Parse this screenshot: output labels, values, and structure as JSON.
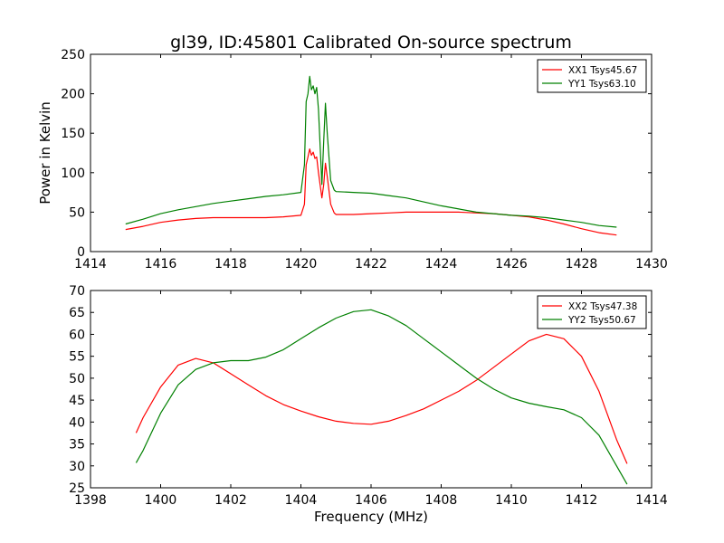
{
  "colors": {
    "xx": "#ff0000",
    "yy": "#008000",
    "frame": "#000000",
    "background": "#ffffff"
  },
  "chart_data": [
    {
      "type": "line",
      "title": "gl39, ID:45801 Calibrated On-source spectrum",
      "xlabel": "",
      "ylabel": "Power in Kelvin",
      "xlim": [
        1414,
        1430
      ],
      "ylim": [
        0,
        250
      ],
      "xticks": [
        1414,
        1416,
        1418,
        1420,
        1422,
        1424,
        1426,
        1428,
        1430
      ],
      "yticks": [
        0,
        50,
        100,
        150,
        200,
        250
      ],
      "grid": false,
      "legend": "top-right",
      "series": [
        {
          "name": "XX1 Tsys45.67",
          "color": "#ff0000",
          "points": [
            [
              1415.0,
              28
            ],
            [
              1415.5,
              32
            ],
            [
              1416.0,
              37
            ],
            [
              1416.5,
              40
            ],
            [
              1417.0,
              42
            ],
            [
              1417.5,
              43
            ],
            [
              1418.0,
              43
            ],
            [
              1418.5,
              43
            ],
            [
              1419.0,
              43
            ],
            [
              1419.5,
              44
            ],
            [
              1420.0,
              46
            ],
            [
              1420.1,
              60
            ],
            [
              1420.15,
              110
            ],
            [
              1420.2,
              120
            ],
            [
              1420.25,
              130
            ],
            [
              1420.3,
              122
            ],
            [
              1420.35,
              126
            ],
            [
              1420.4,
              118
            ],
            [
              1420.45,
              120
            ],
            [
              1420.5,
              100
            ],
            [
              1420.6,
              68
            ],
            [
              1420.65,
              85
            ],
            [
              1420.7,
              112
            ],
            [
              1420.75,
              95
            ],
            [
              1420.85,
              60
            ],
            [
              1420.95,
              49
            ],
            [
              1421.0,
              47
            ],
            [
              1421.5,
              47
            ],
            [
              1422.0,
              48
            ],
            [
              1422.5,
              49
            ],
            [
              1423.0,
              50
            ],
            [
              1423.5,
              50
            ],
            [
              1424.0,
              50
            ],
            [
              1424.5,
              50
            ],
            [
              1425.0,
              49
            ],
            [
              1425.5,
              48
            ],
            [
              1426.0,
              46
            ],
            [
              1426.5,
              44
            ],
            [
              1427.0,
              40
            ],
            [
              1427.5,
              35
            ],
            [
              1428.0,
              29
            ],
            [
              1428.5,
              24
            ],
            [
              1429.0,
              21
            ]
          ]
        },
        {
          "name": "YY1 Tsys63.10",
          "color": "#008000",
          "points": [
            [
              1415.0,
              35
            ],
            [
              1415.5,
              41
            ],
            [
              1416.0,
              48
            ],
            [
              1416.5,
              53
            ],
            [
              1417.0,
              57
            ],
            [
              1417.5,
              61
            ],
            [
              1418.0,
              64
            ],
            [
              1418.5,
              67
            ],
            [
              1419.0,
              70
            ],
            [
              1419.5,
              72
            ],
            [
              1420.0,
              75
            ],
            [
              1420.1,
              110
            ],
            [
              1420.15,
              190
            ],
            [
              1420.2,
              200
            ],
            [
              1420.25,
              222
            ],
            [
              1420.3,
              205
            ],
            [
              1420.35,
              210
            ],
            [
              1420.4,
              200
            ],
            [
              1420.45,
              208
            ],
            [
              1420.5,
              180
            ],
            [
              1420.6,
              85
            ],
            [
              1420.65,
              140
            ],
            [
              1420.7,
              188
            ],
            [
              1420.75,
              150
            ],
            [
              1420.85,
              90
            ],
            [
              1420.95,
              78
            ],
            [
              1421.0,
              76
            ],
            [
              1421.5,
              75
            ],
            [
              1422.0,
              74
            ],
            [
              1422.5,
              71
            ],
            [
              1423.0,
              68
            ],
            [
              1423.5,
              63
            ],
            [
              1424.0,
              58
            ],
            [
              1424.5,
              54
            ],
            [
              1425.0,
              50
            ],
            [
              1425.5,
              48
            ],
            [
              1426.0,
              46
            ],
            [
              1426.5,
              45
            ],
            [
              1427.0,
              43
            ],
            [
              1427.5,
              40
            ],
            [
              1428.0,
              37
            ],
            [
              1428.5,
              33
            ],
            [
              1429.0,
              31
            ]
          ]
        }
      ]
    },
    {
      "type": "line",
      "title": "",
      "xlabel": "Frequency (MHz)",
      "ylabel": "",
      "xlim": [
        1398,
        1414
      ],
      "ylim": [
        25,
        70
      ],
      "xticks": [
        1398,
        1400,
        1402,
        1404,
        1406,
        1408,
        1410,
        1412,
        1414
      ],
      "yticks": [
        25,
        30,
        35,
        40,
        45,
        50,
        55,
        60,
        65,
        70
      ],
      "grid": false,
      "legend": "top-right",
      "series": [
        {
          "name": "XX2 Tsys47.38",
          "color": "#ff0000",
          "points": [
            [
              1399.3,
              37.5
            ],
            [
              1399.5,
              41
            ],
            [
              1400.0,
              48
            ],
            [
              1400.5,
              53
            ],
            [
              1401.0,
              54.5
            ],
            [
              1401.5,
              53.5
            ],
            [
              1402.0,
              51
            ],
            [
              1402.5,
              48.5
            ],
            [
              1403.0,
              46
            ],
            [
              1403.5,
              44
            ],
            [
              1404.0,
              42.5
            ],
            [
              1404.5,
              41.2
            ],
            [
              1405.0,
              40.2
            ],
            [
              1405.5,
              39.7
            ],
            [
              1406.0,
              39.5
            ],
            [
              1406.5,
              40.2
            ],
            [
              1407.0,
              41.5
            ],
            [
              1407.5,
              43
            ],
            [
              1408.0,
              45
            ],
            [
              1408.5,
              47
            ],
            [
              1409.0,
              49.5
            ],
            [
              1409.5,
              52.5
            ],
            [
              1410.0,
              55.5
            ],
            [
              1410.5,
              58.5
            ],
            [
              1411.0,
              60
            ],
            [
              1411.5,
              59
            ],
            [
              1412.0,
              55
            ],
            [
              1412.5,
              47
            ],
            [
              1413.0,
              36
            ],
            [
              1413.3,
              30.5
            ]
          ]
        },
        {
          "name": "YY2 Tsys50.67",
          "color": "#008000",
          "points": [
            [
              1399.3,
              30.7
            ],
            [
              1399.5,
              33.5
            ],
            [
              1400.0,
              42
            ],
            [
              1400.5,
              48.5
            ],
            [
              1401.0,
              52
            ],
            [
              1401.5,
              53.5
            ],
            [
              1402.0,
              54
            ],
            [
              1402.5,
              54
            ],
            [
              1403.0,
              54.8
            ],
            [
              1403.5,
              56.5
            ],
            [
              1404.0,
              59
            ],
            [
              1404.5,
              61.5
            ],
            [
              1405.0,
              63.7
            ],
            [
              1405.5,
              65.2
            ],
            [
              1406.0,
              65.6
            ],
            [
              1406.5,
              64.2
            ],
            [
              1407.0,
              62
            ],
            [
              1407.5,
              59
            ],
            [
              1408.0,
              56
            ],
            [
              1408.5,
              53
            ],
            [
              1409.0,
              50
            ],
            [
              1409.5,
              47.5
            ],
            [
              1410.0,
              45.5
            ],
            [
              1410.5,
              44.3
            ],
            [
              1411.0,
              43.5
            ],
            [
              1411.5,
              42.8
            ],
            [
              1412.0,
              41
            ],
            [
              1412.5,
              37
            ],
            [
              1413.0,
              30
            ],
            [
              1413.3,
              25.8
            ]
          ]
        }
      ]
    }
  ]
}
